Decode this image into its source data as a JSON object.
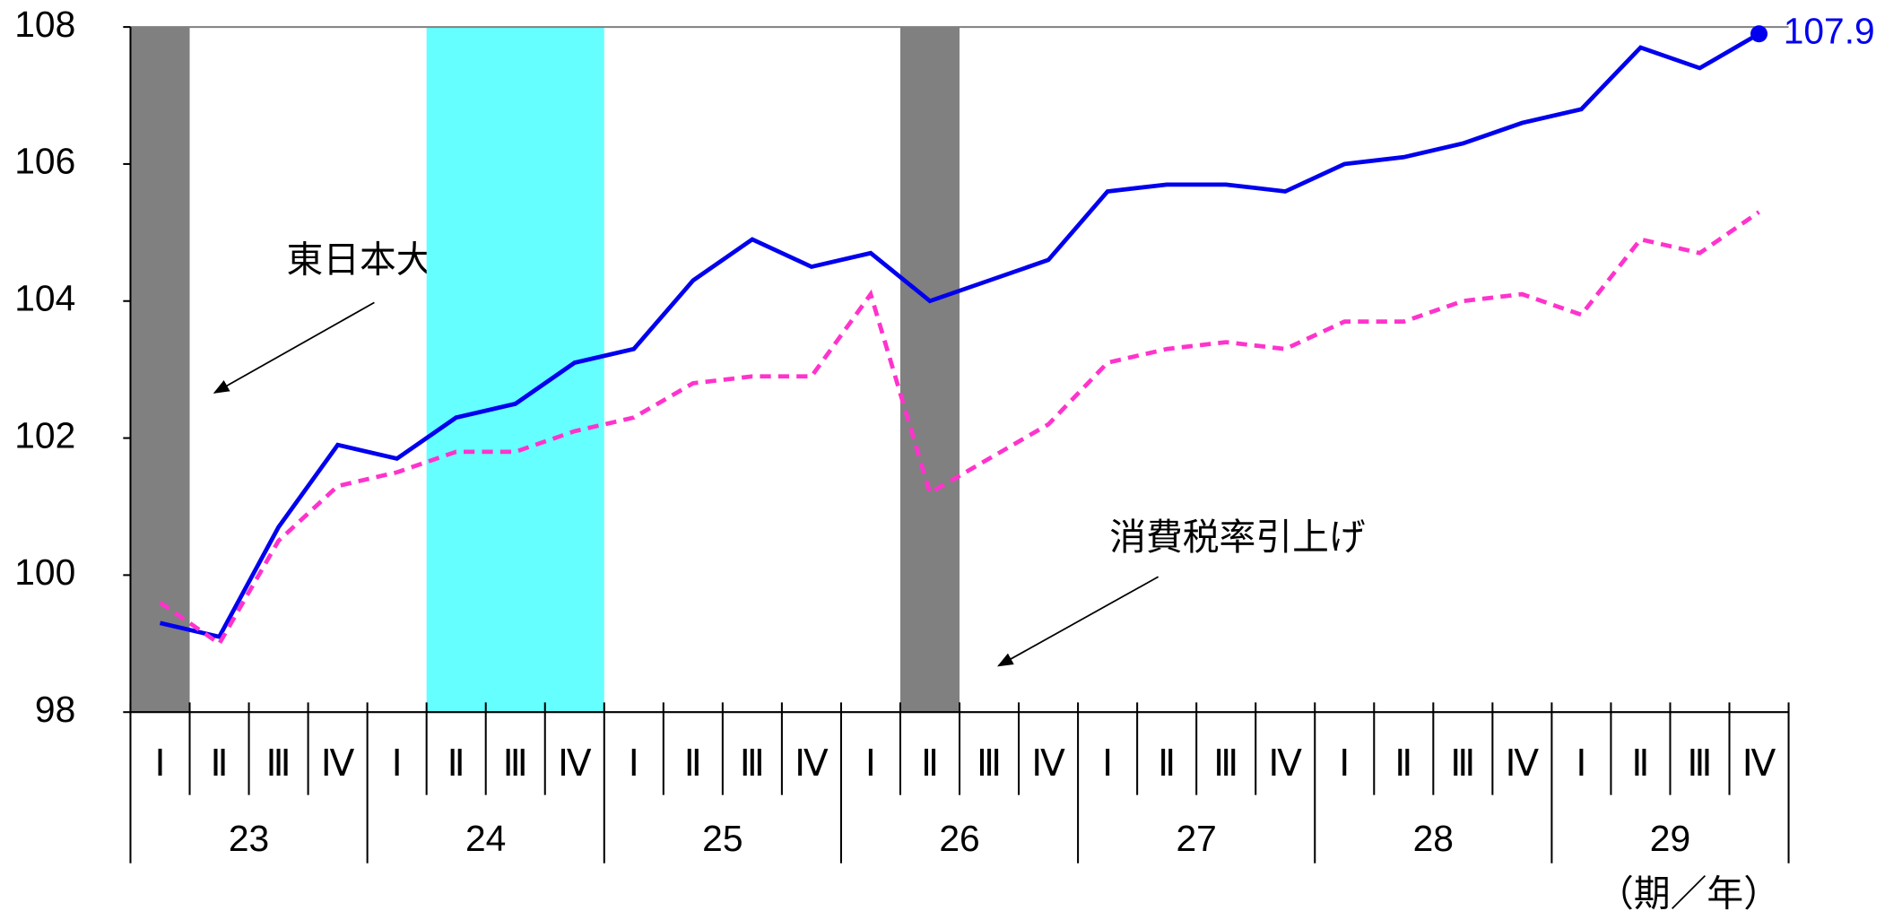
{
  "chart_data": {
    "type": "line",
    "categories": [
      "Ⅰ",
      "Ⅱ",
      "Ⅲ",
      "Ⅳ",
      "Ⅰ",
      "Ⅱ",
      "Ⅲ",
      "Ⅳ",
      "Ⅰ",
      "Ⅱ",
      "Ⅲ",
      "Ⅳ",
      "Ⅰ",
      "Ⅱ",
      "Ⅲ",
      "Ⅳ",
      "Ⅰ",
      "Ⅱ",
      "Ⅲ",
      "Ⅳ",
      "Ⅰ",
      "Ⅱ",
      "Ⅲ",
      "Ⅳ",
      "Ⅰ",
      "Ⅱ",
      "Ⅲ",
      "Ⅳ"
    ],
    "years": [
      "23",
      "24",
      "25",
      "26",
      "27",
      "28",
      "29"
    ],
    "x_label": "（期／年）",
    "series": [
      {
        "color": "#0000ee",
        "dash": false,
        "values": [
          99.3,
          99.1,
          100.7,
          101.9,
          101.7,
          102.3,
          102.5,
          103.1,
          103.3,
          104.3,
          104.9,
          104.5,
          104.7,
          104.0,
          104.3,
          104.6,
          105.6,
          105.7,
          105.7,
          105.6,
          106.0,
          106.1,
          106.3,
          106.6,
          106.8,
          107.7,
          107.4,
          107.9
        ]
      },
      {
        "color": "#ff33cc",
        "dash": true,
        "values": [
          99.6,
          99.0,
          100.5,
          101.3,
          101.5,
          101.8,
          101.8,
          102.1,
          102.3,
          102.8,
          102.9,
          102.9,
          104.1,
          101.2,
          101.7,
          102.2,
          103.1,
          103.3,
          103.4,
          103.3,
          103.7,
          103.7,
          104.0,
          104.1,
          103.8,
          104.9,
          104.7,
          105.3
        ]
      }
    ],
    "shaded": [
      {
        "start": 0,
        "end": 0,
        "color": "#808080"
      },
      {
        "start": 5,
        "end": 7,
        "color": "#66ffff"
      },
      {
        "start": 13,
        "end": 13,
        "color": "#808080"
      }
    ],
    "annotations": [
      "東日本大震災発生",
      "消費税率引上げ"
    ],
    "ylim": [
      98,
      108
    ],
    "yticks": [
      98,
      100,
      102,
      104,
      106,
      108
    ]
  }
}
